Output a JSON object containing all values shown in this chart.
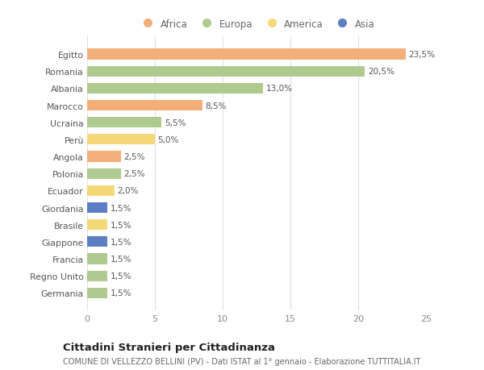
{
  "countries": [
    "Egitto",
    "Romania",
    "Albania",
    "Marocco",
    "Ucraina",
    "Perù",
    "Angola",
    "Polonia",
    "Ecuador",
    "Giordania",
    "Brasile",
    "Giappone",
    "Francia",
    "Regno Unito",
    "Germania"
  ],
  "values": [
    23.5,
    20.5,
    13.0,
    8.5,
    5.5,
    5.0,
    2.5,
    2.5,
    2.0,
    1.5,
    1.5,
    1.5,
    1.5,
    1.5,
    1.5
  ],
  "labels": [
    "23,5%",
    "20,5%",
    "13,0%",
    "8,5%",
    "5,5%",
    "5,0%",
    "2,5%",
    "2,5%",
    "2,0%",
    "1,5%",
    "1,5%",
    "1,5%",
    "1,5%",
    "1,5%",
    "1,5%"
  ],
  "continents": [
    "Africa",
    "Europa",
    "Europa",
    "Africa",
    "Europa",
    "America",
    "Africa",
    "Europa",
    "America",
    "Asia",
    "America",
    "Asia",
    "Europa",
    "Europa",
    "Europa"
  ],
  "colors": {
    "Africa": "#F2AF7A",
    "Europa": "#AECA8E",
    "America": "#F5D878",
    "Asia": "#5B7EC4"
  },
  "legend_order": [
    "Africa",
    "Europa",
    "America",
    "Asia"
  ],
  "title": "Cittadini Stranieri per Cittadinanza",
  "subtitle": "COMUNE DI VELLEZZO BELLINI (PV) - Dati ISTAT al 1° gennaio - Elaborazione TUTTITALIA.IT",
  "xlim": [
    0,
    25
  ],
  "xticks": [
    0,
    5,
    10,
    15,
    20,
    25
  ],
  "background_color": "#ffffff",
  "grid_color": "#e0e0e0",
  "bar_height": 0.62,
  "label_fontsize": 7.5,
  "ytick_fontsize": 7.8,
  "xtick_fontsize": 8.0,
  "legend_fontsize": 8.5,
  "title_fontsize": 9.5,
  "subtitle_fontsize": 7.0
}
